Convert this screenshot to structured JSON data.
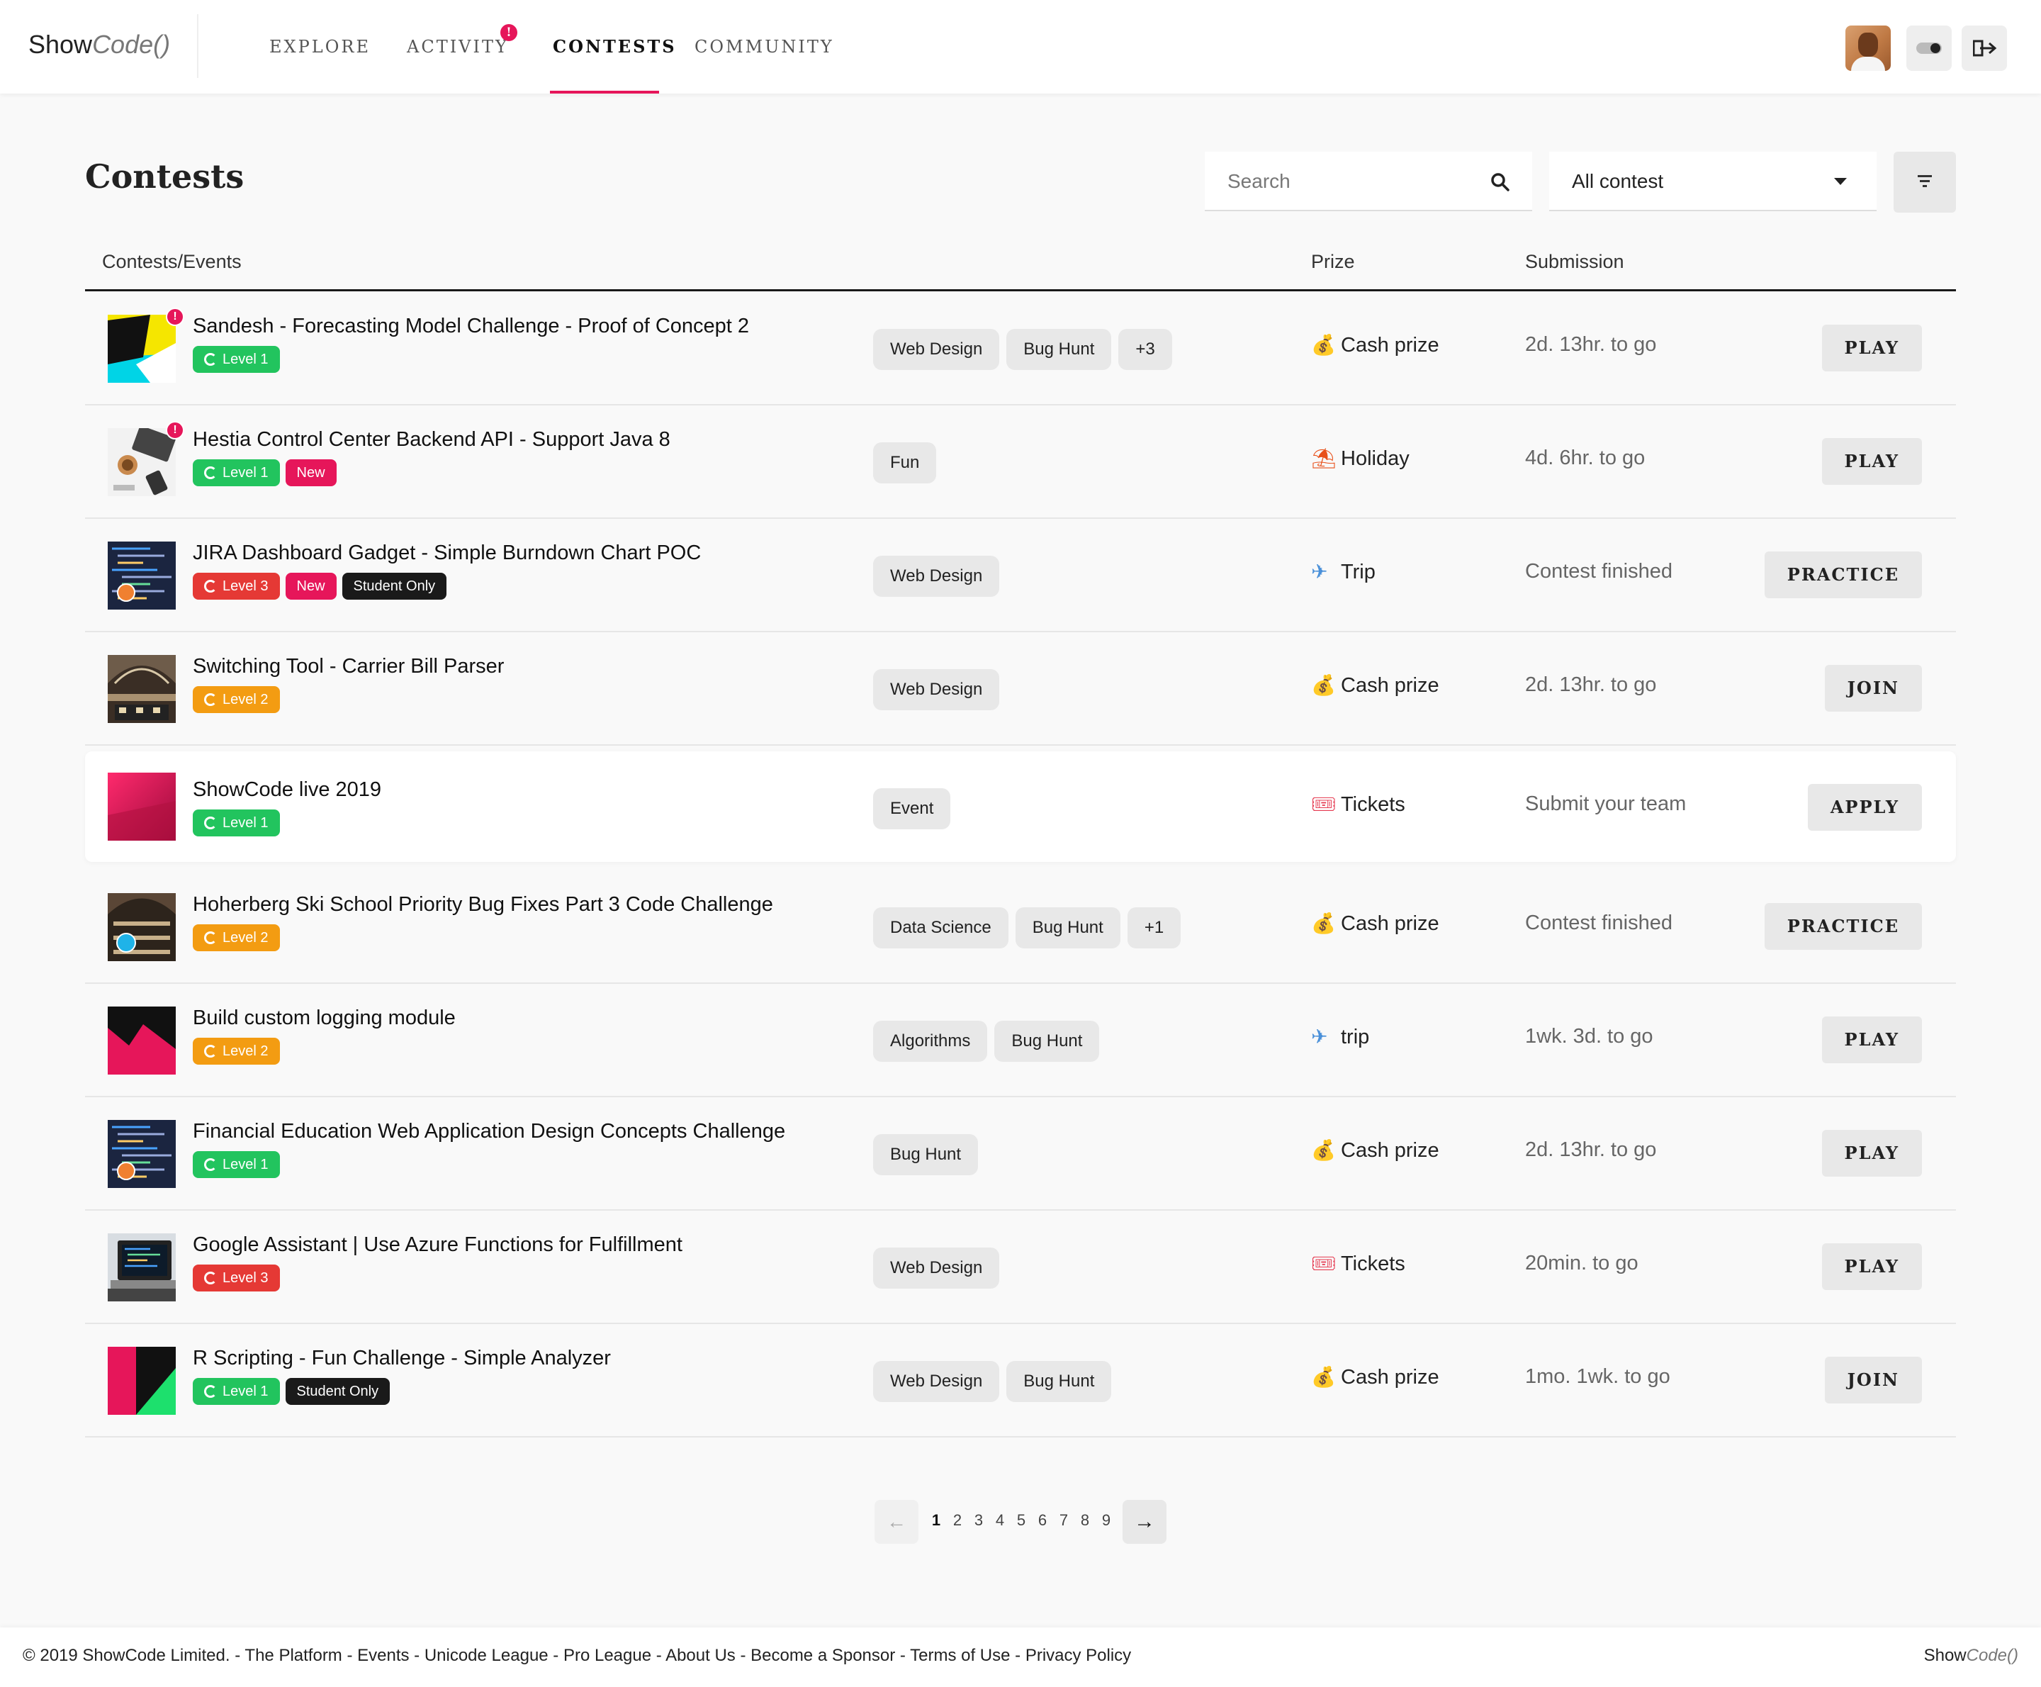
{
  "brand": {
    "name": "Show",
    "code": "Code()"
  },
  "nav": [
    {
      "label": "EXPLORE",
      "active": false,
      "alert": false
    },
    {
      "label": "ACTIVITY",
      "active": false,
      "alert": true
    },
    {
      "label": "CONTESTS",
      "active": true,
      "alert": false
    },
    {
      "label": "COMMUNITY",
      "active": false,
      "alert": false
    }
  ],
  "nav_alert_glyph": "!",
  "page_title": "Contests",
  "search": {
    "placeholder": "Search"
  },
  "filter_select": {
    "value": "All contest"
  },
  "columns": {
    "contests": "Contests/Events",
    "prize": "Prize",
    "submission": "Submission"
  },
  "colors": {
    "accent": "#e6165a",
    "level1": "#22c45e",
    "level2": "#f39c12",
    "level3": "#e53935",
    "student": "#1a1a1a"
  },
  "rows": [
    {
      "title": "Sandesh - Forecasting Model Challenge - Proof of Concept 2",
      "thumb": "yellow-cyan-abstract",
      "alert": true,
      "highlight": false,
      "badges": [
        {
          "type": "lvl1",
          "label": "Level 1"
        }
      ],
      "tags": [
        "Web Design",
        "Bug Hunt",
        "+3"
      ],
      "prize_icon": "money-bag-icon",
      "prize_glyph": "💰",
      "prize": "Cash prize",
      "submission": "2d. 13hr. to go",
      "action": "PLAY"
    },
    {
      "title": "Hestia Control Center Backend API - Support Java 8",
      "thumb": "desk-laptop-coffee",
      "alert": true,
      "highlight": false,
      "badges": [
        {
          "type": "lvl1",
          "label": "Level 1"
        },
        {
          "type": "new",
          "label": "New"
        }
      ],
      "tags": [
        "Fun"
      ],
      "prize_icon": "beach-umbrella-icon",
      "prize_glyph": "⛱",
      "prize": "Holiday",
      "submission": "4d. 6hr. to go",
      "action": "PLAY"
    },
    {
      "title": "JIRA Dashboard Gadget - Simple Burndown Chart POC",
      "thumb": "code-screen-dark",
      "alert": false,
      "highlight": false,
      "badges": [
        {
          "type": "lvl3",
          "label": "Level 3"
        },
        {
          "type": "new",
          "label": "New"
        },
        {
          "type": "student",
          "label": "Student Only"
        }
      ],
      "tags": [
        "Web Design"
      ],
      "prize_icon": "airplane-icon",
      "prize_glyph": "✈",
      "prize": "Trip",
      "submission": "Contest finished",
      "action": "PRACTICE"
    },
    {
      "title": "Switching Tool - Carrier Bill Parser",
      "thumb": "train-station-hall",
      "alert": false,
      "highlight": false,
      "badges": [
        {
          "type": "lvl2",
          "label": "Level 2"
        }
      ],
      "tags": [
        "Web Design"
      ],
      "prize_icon": "money-bag-icon",
      "prize_glyph": "💰",
      "prize": "Cash prize",
      "submission": "2d. 13hr. to go",
      "action": "JOIN"
    },
    {
      "title": "ShowCode live 2019",
      "thumb": "crimson-gradient",
      "alert": false,
      "highlight": true,
      "badges": [
        {
          "type": "lvl1",
          "label": "Level 1"
        }
      ],
      "tags": [
        "Event"
      ],
      "prize_icon": "ticket-icon",
      "prize_glyph": "🎟",
      "prize": "Tickets",
      "submission": "Submit your team",
      "action": "APPLY"
    },
    {
      "title": "Hoherberg Ski School Priority Bug Fixes Part 3 Code Challenge",
      "thumb": "library-hall",
      "alert": false,
      "highlight": false,
      "badges": [
        {
          "type": "lvl2",
          "label": "Level 2"
        }
      ],
      "tags": [
        "Data Science",
        "Bug Hunt",
        "+1"
      ],
      "prize_icon": "money-bag-icon",
      "prize_glyph": "💰",
      "prize": "Cash prize",
      "submission": "Contest finished",
      "action": "PRACTICE"
    },
    {
      "title": "Build custom logging module",
      "thumb": "pink-black-wave",
      "alert": false,
      "highlight": false,
      "badges": [
        {
          "type": "lvl2",
          "label": "Level 2"
        }
      ],
      "tags": [
        "Algorithms",
        "Bug Hunt"
      ],
      "prize_icon": "airplane-icon",
      "prize_glyph": "✈",
      "prize": "trip",
      "submission": "1wk. 3d. to go",
      "action": "PLAY"
    },
    {
      "title": "Financial Education Web Application Design Concepts Challenge",
      "thumb": "code-screen-dark",
      "alert": false,
      "highlight": false,
      "badges": [
        {
          "type": "lvl1",
          "label": "Level 1"
        }
      ],
      "tags": [
        "Bug Hunt"
      ],
      "prize_icon": "money-bag-icon",
      "prize_glyph": "💰",
      "prize": "Cash prize",
      "submission": "2d. 13hr. to go",
      "action": "PLAY"
    },
    {
      "title": "Google Assistant | Use Azure Functions for Fulfillment",
      "thumb": "laptop-code",
      "alert": false,
      "highlight": false,
      "badges": [
        {
          "type": "lvl3",
          "label": "Level 3"
        }
      ],
      "tags": [
        "Web Design"
      ],
      "prize_icon": "ticket-icon",
      "prize_glyph": "🎟",
      "prize": "Tickets",
      "submission": "20min. to go",
      "action": "PLAY"
    },
    {
      "title": "R Scripting - Fun Challenge - Simple Analyzer",
      "thumb": "pink-black-green",
      "alert": false,
      "highlight": false,
      "badges": [
        {
          "type": "lvl1",
          "label": "Level 1"
        },
        {
          "type": "student",
          "label": "Student Only"
        }
      ],
      "tags": [
        "Web Design",
        "Bug Hunt"
      ],
      "prize_icon": "money-bag-icon",
      "prize_glyph": "💰",
      "prize": "Cash prize",
      "submission": "1mo. 1wk. to go",
      "action": "JOIN"
    }
  ],
  "pagination": {
    "pages": [
      "1",
      "2",
      "3",
      "4",
      "5",
      "6",
      "7",
      "8",
      "9"
    ],
    "current": "1",
    "prev_glyph": "←",
    "next_glyph": "→"
  },
  "footer": {
    "text": "© 2019 ShowCode Limited. - The Platform - Events - Unicode League - Pro League - About Us - Become a Sponsor - Terms of Use - Privacy Policy",
    "brand_show": "Show",
    "brand_code": "Code()"
  }
}
